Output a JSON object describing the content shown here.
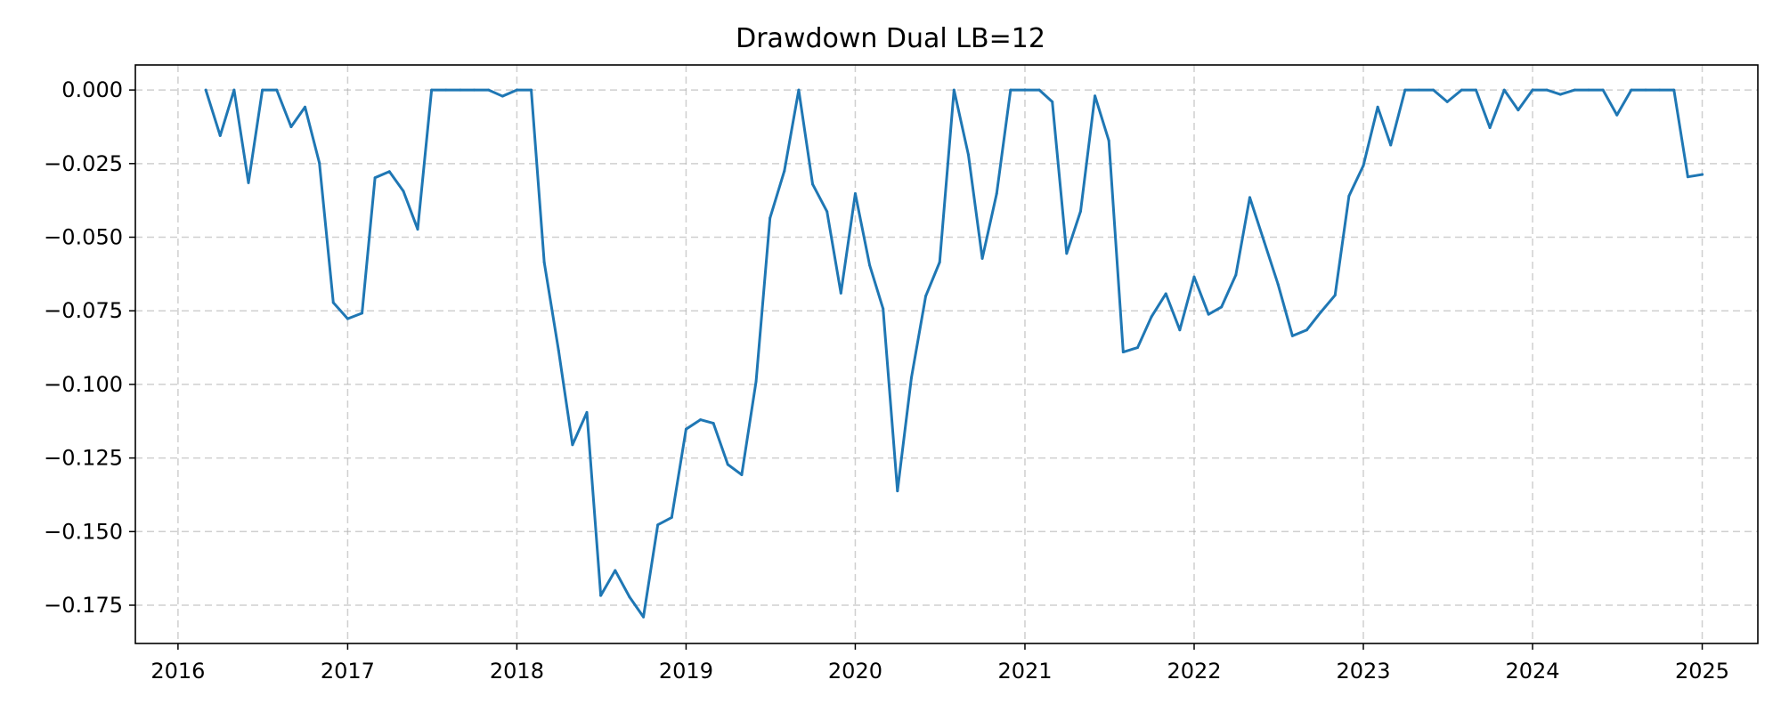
{
  "chart_data": {
    "type": "line",
    "title": "Drawdown Dual LB=12",
    "xlabel": "",
    "ylabel": "",
    "x_axis": "date",
    "xlim": [
      "2015-10-01",
      "2025-05-01"
    ],
    "ylim": [
      -0.188,
      0.0085
    ],
    "x_ticks": [
      "2016",
      "2017",
      "2018",
      "2019",
      "2020",
      "2021",
      "2022",
      "2023",
      "2024",
      "2025"
    ],
    "y_ticks": [
      "0.000",
      "−0.025",
      "−0.050",
      "−0.075",
      "−0.100",
      "−0.125",
      "−0.150",
      "−0.175"
    ],
    "y_tick_values": [
      0,
      -0.025,
      -0.05,
      -0.075,
      -0.1,
      -0.125,
      -0.15,
      -0.175
    ],
    "grid": true,
    "color": "#1f77b4",
    "series": [
      {
        "x": [
          "2016-03-01",
          "2016-04-01",
          "2016-05-01",
          "2016-06-01",
          "2016-07-01",
          "2016-08-01",
          "2016-09-01",
          "2016-10-01",
          "2016-11-01",
          "2016-12-01",
          "2017-01-01",
          "2017-02-01",
          "2017-03-01",
          "2017-04-01",
          "2017-05-01",
          "2017-06-01",
          "2017-07-01",
          "2017-08-01",
          "2017-09-01",
          "2017-10-01",
          "2017-11-01",
          "2017-12-01",
          "2018-01-01",
          "2018-02-01",
          "2018-03-01",
          "2018-04-01",
          "2018-05-01",
          "2018-06-01",
          "2018-07-01",
          "2018-08-01",
          "2018-09-01",
          "2018-10-01",
          "2018-11-01",
          "2018-12-01",
          "2019-01-01",
          "2019-02-01",
          "2019-03-01",
          "2019-04-01",
          "2019-05-01",
          "2019-06-01",
          "2019-07-01",
          "2019-08-01",
          "2019-09-01",
          "2019-10-01",
          "2019-11-01",
          "2019-12-01",
          "2020-01-01",
          "2020-02-01",
          "2020-03-01",
          "2020-04-01",
          "2020-05-01",
          "2020-06-01",
          "2020-07-01",
          "2020-08-01",
          "2020-09-01",
          "2020-10-01",
          "2020-11-01",
          "2020-12-01",
          "2021-01-01",
          "2021-02-01",
          "2021-03-01",
          "2021-04-01",
          "2021-05-01",
          "2021-06-01",
          "2021-07-01",
          "2021-08-01",
          "2021-09-01",
          "2021-10-01",
          "2021-11-01",
          "2021-12-01",
          "2022-01-01",
          "2022-02-01",
          "2022-03-01",
          "2022-04-01",
          "2022-05-01",
          "2022-06-01",
          "2022-07-01",
          "2022-08-01",
          "2022-09-01",
          "2022-10-01",
          "2022-11-01",
          "2022-12-01",
          "2023-01-01",
          "2023-02-01",
          "2023-03-01",
          "2023-04-01",
          "2023-05-01",
          "2023-06-01",
          "2023-07-01",
          "2023-08-01",
          "2023-09-01",
          "2023-10-01",
          "2023-11-01",
          "2023-12-01",
          "2024-01-01",
          "2024-02-01",
          "2024-03-01",
          "2024-04-01",
          "2024-05-01",
          "2024-06-01",
          "2024-07-01",
          "2024-08-01",
          "2024-09-01",
          "2024-10-01",
          "2024-11-01",
          "2024-12-01",
          "2025-01-01"
        ],
        "y": [
          0.0,
          -0.0155,
          0.0,
          -0.0315,
          0.0,
          0.0,
          -0.0125,
          -0.0058,
          -0.0248,
          -0.0722,
          -0.0777,
          -0.0758,
          -0.0298,
          -0.0277,
          -0.0343,
          -0.0473,
          0.0,
          0.0,
          0.0,
          0.0,
          0.0,
          -0.0021,
          0.0,
          0.0,
          -0.0585,
          -0.0885,
          -0.1205,
          -0.1095,
          -0.1717,
          -0.1632,
          -0.1722,
          -0.179,
          -0.1477,
          -0.1452,
          -0.1152,
          -0.112,
          -0.1132,
          -0.1272,
          -0.1307,
          -0.099,
          -0.0435,
          -0.0275,
          0.0,
          -0.032,
          -0.0413,
          -0.069,
          -0.0352,
          -0.0595,
          -0.0743,
          -0.1362,
          -0.0978,
          -0.07,
          -0.0585,
          0.0,
          -0.022,
          -0.0572,
          -0.0352,
          0.0,
          0.0,
          0.0,
          -0.004,
          -0.0555,
          -0.0412,
          -0.002,
          -0.0172,
          -0.089,
          -0.0875,
          -0.077,
          -0.0692,
          -0.0815,
          -0.0635,
          -0.0762,
          -0.0737,
          -0.0628,
          -0.0365,
          -0.0515,
          -0.066,
          -0.0835,
          -0.0815,
          -0.0755,
          -0.0697,
          -0.036,
          -0.0257,
          -0.0058,
          -0.0187,
          0.0,
          0.0,
          0.0,
          -0.004,
          0.0,
          0.0,
          -0.0128,
          0.0,
          -0.0068,
          0.0,
          0.0,
          -0.0015,
          0.0,
          0.0,
          0.0,
          -0.0085,
          0.0,
          0.0,
          0.0,
          0.0,
          -0.0295,
          -0.0287
        ]
      }
    ]
  }
}
